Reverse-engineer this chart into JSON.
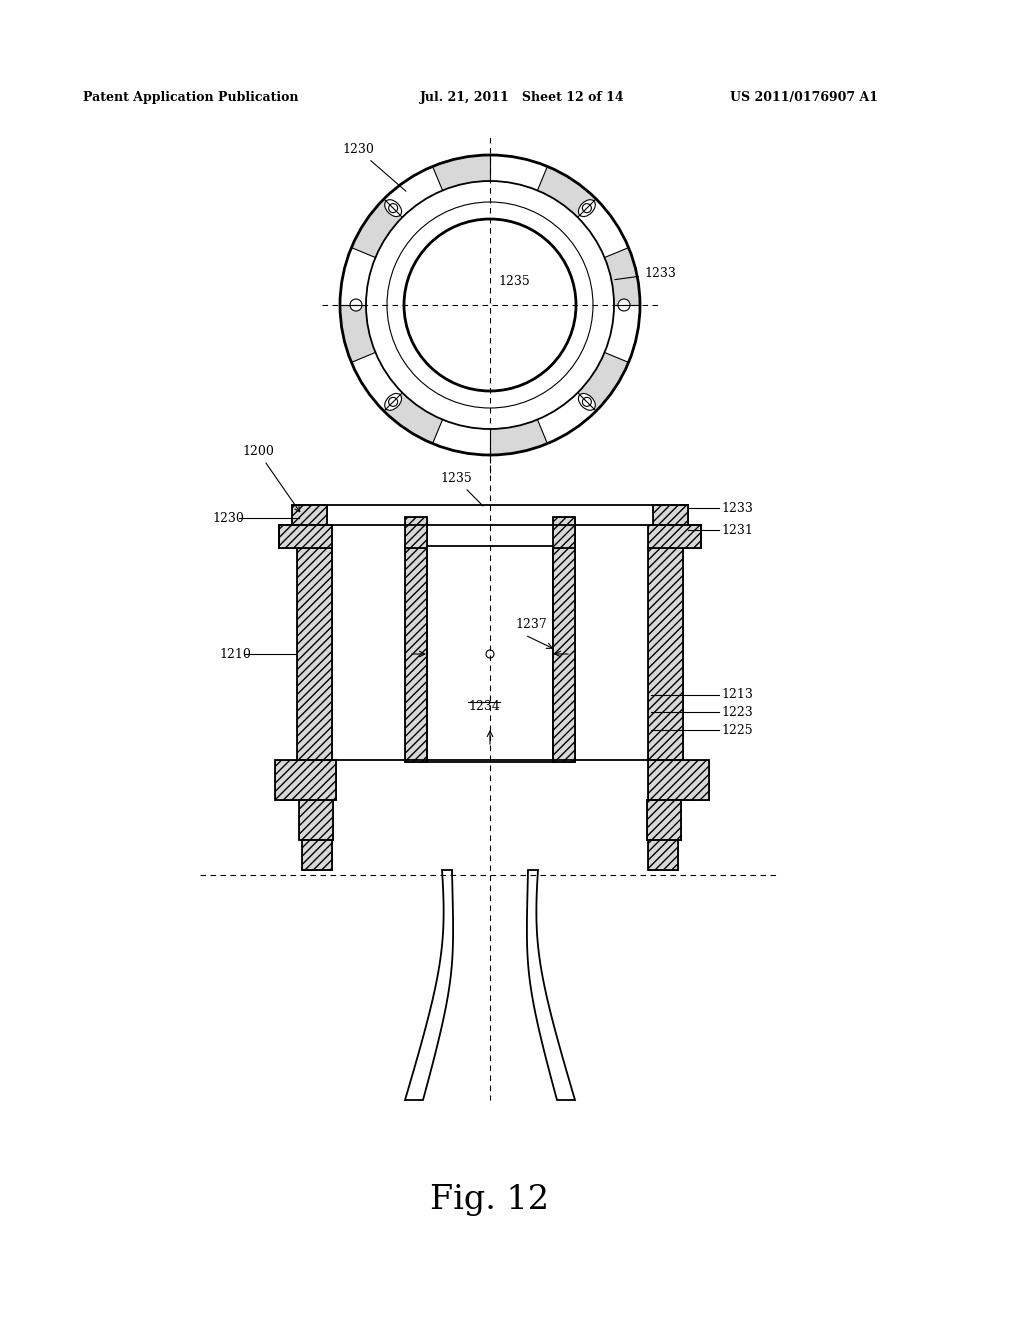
{
  "bg_color": "#ffffff",
  "text_color": "#000000",
  "header_left": "Patent Application Publication",
  "header_mid": "Jul. 21, 2011   Sheet 12 of 14",
  "header_right": "US 2011/0176907 A1",
  "figure_label": "Fig. 12",
  "lw_thin": 0.8,
  "lw_med": 1.3,
  "lw_thick": 2.0,
  "hatch_pattern": "////",
  "hatch_color": "#000000",
  "fill_color": "#d8d8d8"
}
